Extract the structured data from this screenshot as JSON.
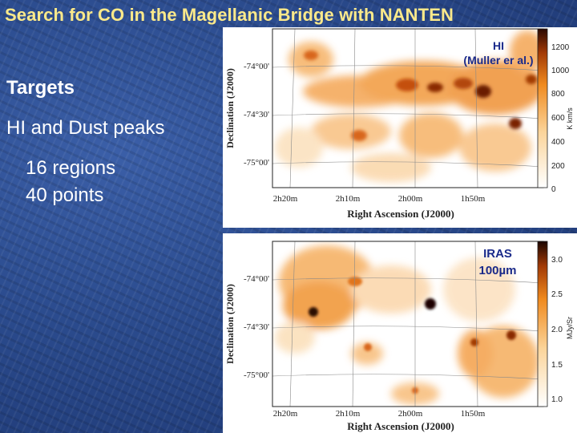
{
  "slide": {
    "title": "Search for CO in the Magellanic Bridge with NANTEN",
    "bullets": {
      "targets": "Targets",
      "peaks": "HI and Dust peaks",
      "regions": "16 regions",
      "points": "40 points"
    }
  },
  "maps": {
    "hi": {
      "label_line1": "HI",
      "label_line2": "(Muller er al.)",
      "ylabel": "Declination (J2000)",
      "xlabel": "Right Ascension (J2000)",
      "yticks": [
        "-74°00'",
        "-74°30'",
        "-75°00'"
      ],
      "xticks": [
        "2h20m",
        "2h10m",
        "2h00m",
        "1h50m"
      ],
      "colorbar_ticks": [
        "1200",
        "1000",
        "800",
        "600",
        "400",
        "200",
        "0"
      ],
      "colorbar_unit": "K km/s"
    },
    "iras": {
      "label_line1": "IRAS",
      "label_line2": "100µm",
      "ylabel": "Declination (J2000)",
      "xlabel": "Right Ascension (J2000)",
      "yticks": [
        "-74°00'",
        "-74°30'",
        "-75°00'"
      ],
      "xticks": [
        "2h20m",
        "2h10m",
        "2h00m",
        "1h50m"
      ],
      "colorbar_ticks": [
        "3.0",
        "2.5",
        "2.0",
        "1.5",
        "1.0"
      ],
      "colorbar_unit": "MJy/Sr"
    }
  },
  "colors": {
    "title": "#fbe98a",
    "body_text": "#ffffff",
    "annotation": "#1a2a8a",
    "map_orange": "#f08a1e",
    "map_dark": "#3a0c02"
  }
}
